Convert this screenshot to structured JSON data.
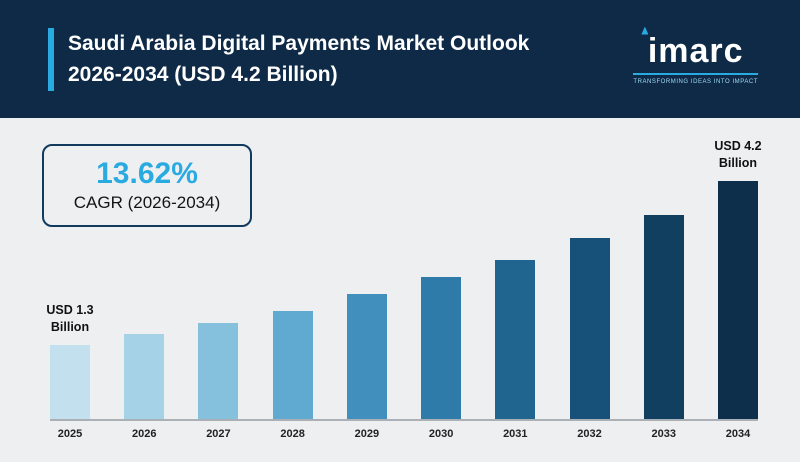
{
  "header": {
    "title_line1": "Saudi Arabia Digital Payments Market Outlook",
    "title_line2": "2026-2034 (USD 4.2 Billion)",
    "logo": {
      "text": "imarc",
      "tagline": "TRANSFORMING IDEAS INTO IMPACT"
    }
  },
  "cagr_box": {
    "value": "13.62%",
    "label": "CAGR (2026-2034)"
  },
  "chart_data": {
    "type": "bar",
    "title": "Saudi Arabia Digital Payments Market Outlook 2026-2034 (USD 4.2 Billion)",
    "categories": [
      "2025",
      "2026",
      "2027",
      "2028",
      "2029",
      "2030",
      "2031",
      "2032",
      "2033",
      "2034"
    ],
    "values": [
      1.3,
      1.5,
      1.7,
      1.9,
      2.2,
      2.5,
      2.8,
      3.2,
      3.6,
      4.2
    ],
    "unit": "USD Billion",
    "cagr_percent": 13.62,
    "ylim": [
      0,
      4.2
    ],
    "grid": false,
    "legend": false,
    "annotations": [
      {
        "category": "2025",
        "lines": [
          "USD 1.3",
          "Billion"
        ]
      },
      {
        "category": "2034",
        "lines": [
          "USD 4.2",
          "Billion"
        ]
      }
    ],
    "bar_colors": [
      "#c3e0ef",
      "#a6d2e7",
      "#85c0dc",
      "#60a9d0",
      "#418fbd",
      "#2e7aa8",
      "#1f6590",
      "#175078",
      "#113f60",
      "#0d2f4c"
    ]
  },
  "colors": {
    "header_bg": "#0e2a47",
    "accent_cyan": "#29abe2",
    "body_bg": "#edeff1",
    "axis_line": "#aab0b6"
  }
}
